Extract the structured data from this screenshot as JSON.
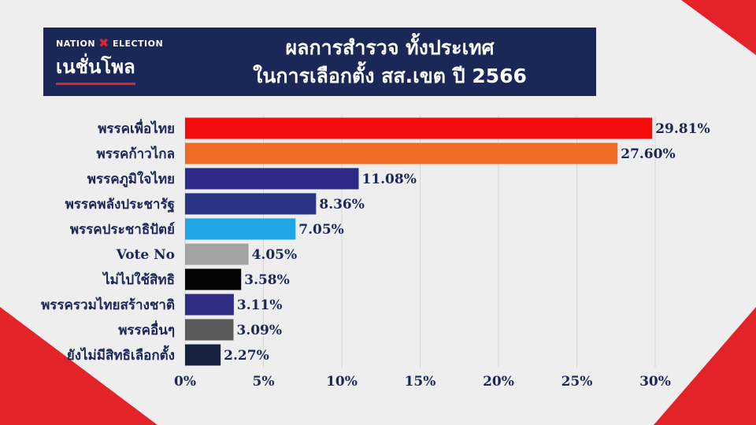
{
  "banner": {
    "logo_brand_left": "NATION",
    "logo_brand_right": "ELECTION",
    "logo_main": "เนชั่นโพล",
    "title_line1": "ผลการสำรวจ ทั้งประเทศ",
    "title_line2": "ในการเลือกตั้ง สส.เขต ปี 2566"
  },
  "colors": {
    "banner_bg": "#1b2857",
    "accent_red": "#e3222a"
  },
  "chart_data": {
    "type": "bar",
    "orientation": "horizontal",
    "title": "ผลการสำรวจ ทั้งประเทศ ในการเลือกตั้ง สส.เขต ปี 2566",
    "xlabel": "",
    "ylabel": "",
    "xlim": [
      0,
      30
    ],
    "x_ticks": [
      "0%",
      "5%",
      "10%",
      "15%",
      "20%",
      "25%",
      "30%"
    ],
    "grid": true,
    "categories": [
      "พรรคเพื่อไทย",
      "พรรคก้าวไกล",
      "พรรคภูมิใจไทย",
      "พรรคพลังประชารัฐ",
      "พรรคประชาธิปัตย์",
      "Vote No",
      "ไม่ไปใช้สิทธิ",
      "พรรครวมไทยสร้างชาติ",
      "พรรคอื่นๆ",
      "ยังไม่มีสิทธิเลือกตั้ง"
    ],
    "values": [
      29.81,
      27.6,
      11.08,
      8.36,
      7.05,
      4.05,
      3.58,
      3.11,
      3.09,
      2.27
    ],
    "value_labels": [
      "29.81%",
      "27.60%",
      "11.08%",
      "8.36%",
      "7.05%",
      "4.05%",
      "3.58%",
      "3.11%",
      "3.09%",
      "2.27%"
    ],
    "bar_colors": [
      "#f50c0c",
      "#ef6a22",
      "#2f2a86",
      "#2b3585",
      "#1ea6e8",
      "#a3a3a3",
      "#050505",
      "#2f2e84",
      "#5a5a5a",
      "#16203f"
    ]
  }
}
